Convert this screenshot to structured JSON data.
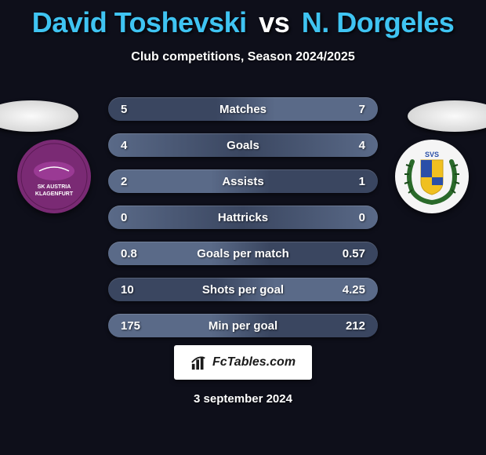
{
  "title": {
    "player1": "David Toshevski",
    "vs": "vs",
    "player2": "N. Dorgeles",
    "p1_color": "#3fc4f2",
    "p2_color": "#3fc4f2",
    "vs_color": "#ffffff",
    "fontsize": 36
  },
  "subtitle": {
    "text": "Club competitions, Season 2024/2025",
    "color": "#ffffff",
    "fontsize": 16
  },
  "background_color": "#0e0f1a",
  "club_left": {
    "bg_color": "#7a2a74",
    "accent_color": "#ffffff",
    "label": "SK AUSTRIA KLAGENFURT"
  },
  "club_right": {
    "bg_color": "#f5f5f5",
    "wreath_color": "#2a6a2a",
    "shield_color": "#f0c020",
    "shield_accent": "#2a4fa8"
  },
  "stats": {
    "row_colors": {
      "left_winner": "#5a6a88",
      "tie": "#5a6a88",
      "right_winner": "#5a6a88",
      "gradient_mid": "#3a4660"
    },
    "label_color": "#ffffff",
    "value_color": "#ffffff",
    "fontsize": 15,
    "rows": [
      {
        "label": "Matches",
        "left": "5",
        "right": "7",
        "who": "right"
      },
      {
        "label": "Goals",
        "left": "4",
        "right": "4",
        "who": "tie"
      },
      {
        "label": "Assists",
        "left": "2",
        "right": "1",
        "who": "left"
      },
      {
        "label": "Hattricks",
        "left": "0",
        "right": "0",
        "who": "tie"
      },
      {
        "label": "Goals per match",
        "left": "0.8",
        "right": "0.57",
        "who": "left"
      },
      {
        "label": "Shots per goal",
        "left": "10",
        "right": "4.25",
        "who": "right"
      },
      {
        "label": "Min per goal",
        "left": "175",
        "right": "212",
        "who": "left"
      }
    ]
  },
  "footer": {
    "brand": "FcTables.com",
    "bg_color": "#ffffff",
    "text_color": "#1a1a1a"
  },
  "date": {
    "text": "3 september 2024",
    "color": "#ffffff",
    "fontsize": 15
  }
}
